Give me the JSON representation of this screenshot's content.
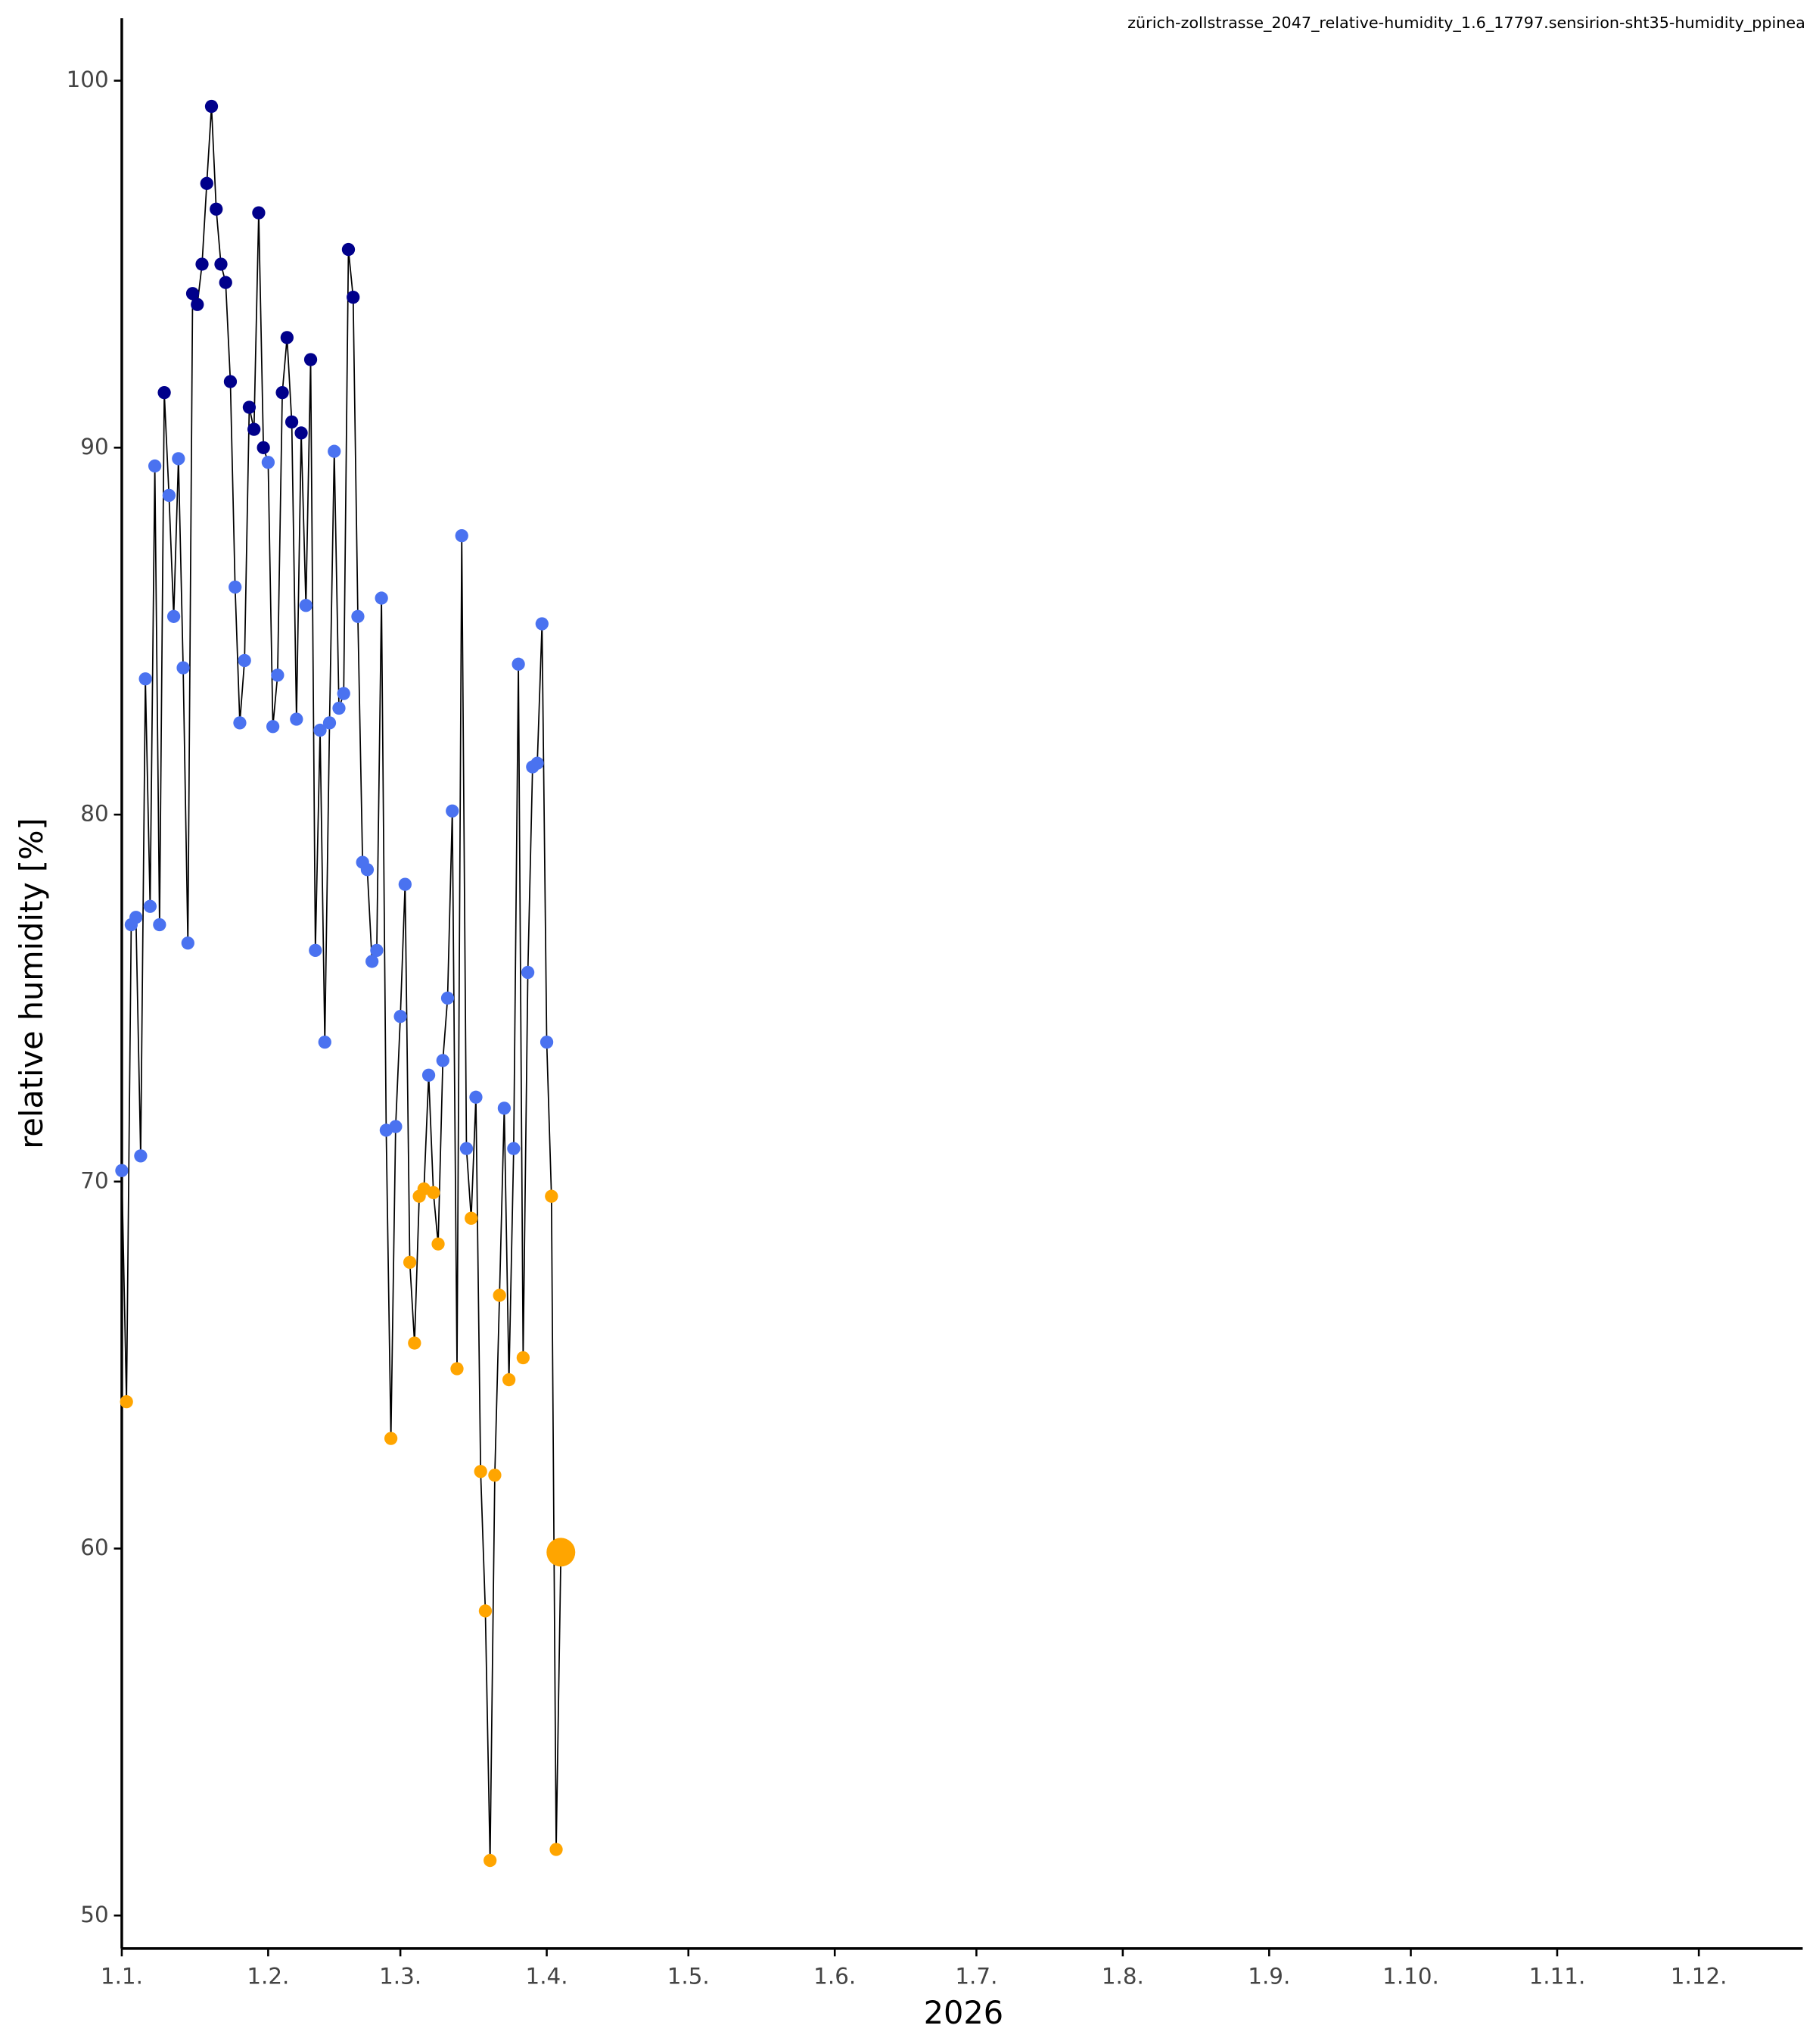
{
  "chart_data": {
    "type": "line",
    "title": "zürich-zollstrasse_2047_relative-humidity_1.6_17797.sensirion-sht35-humidity_ppinea",
    "xlabel": "2026",
    "ylabel": "relative humidity [%]",
    "x": [
      "2026-01-01",
      "2026-01-02",
      "2026-01-03",
      "2026-01-04",
      "2026-01-05",
      "2026-01-06",
      "2026-01-07",
      "2026-01-08",
      "2026-01-09",
      "2026-01-10",
      "2026-01-11",
      "2026-01-12",
      "2026-01-13",
      "2026-01-14",
      "2026-01-15",
      "2026-01-16",
      "2026-01-17",
      "2026-01-18",
      "2026-01-19",
      "2026-01-20",
      "2026-01-21",
      "2026-01-22",
      "2026-01-23",
      "2026-01-24",
      "2026-01-25",
      "2026-01-26",
      "2026-01-27",
      "2026-01-28",
      "2026-01-29",
      "2026-01-30",
      "2026-01-31",
      "2026-02-01",
      "2026-02-02",
      "2026-02-03",
      "2026-02-04",
      "2026-02-05",
      "2026-02-06",
      "2026-02-07",
      "2026-02-08",
      "2026-02-09",
      "2026-02-10",
      "2026-02-11",
      "2026-02-12",
      "2026-02-13",
      "2026-02-14",
      "2026-02-15",
      "2026-02-16",
      "2026-02-17",
      "2026-02-18",
      "2026-02-19",
      "2026-02-20",
      "2026-02-21",
      "2026-02-22",
      "2026-02-23",
      "2026-02-24",
      "2026-02-25",
      "2026-02-26",
      "2026-02-27",
      "2026-02-28",
      "2026-03-01",
      "2026-03-02",
      "2026-03-03",
      "2026-03-04",
      "2026-03-05",
      "2026-03-06",
      "2026-03-07",
      "2026-03-08",
      "2026-03-09",
      "2026-03-10",
      "2026-03-11",
      "2026-03-12",
      "2026-03-13",
      "2026-03-14",
      "2026-03-15",
      "2026-03-16",
      "2026-03-17",
      "2026-03-18",
      "2026-03-19",
      "2026-03-20",
      "2026-03-21",
      "2026-03-22",
      "2026-03-23",
      "2026-03-24",
      "2026-03-25",
      "2026-03-26",
      "2026-03-27",
      "2026-03-28",
      "2026-03-29",
      "2026-03-30",
      "2026-03-31",
      "2026-04-01",
      "2026-04-02",
      "2026-04-03",
      "2026-04-04"
    ],
    "values": [
      70.3,
      64.0,
      77.0,
      77.2,
      70.7,
      83.7,
      77.5,
      89.5,
      77.0,
      91.5,
      88.7,
      85.4,
      89.7,
      84.0,
      76.5,
      94.2,
      93.9,
      95.0,
      97.2,
      99.3,
      96.5,
      95.0,
      94.5,
      91.8,
      86.2,
      82.5,
      84.2,
      91.1,
      90.5,
      96.4,
      90.0,
      89.6,
      82.4,
      83.8,
      91.5,
      93.0,
      90.7,
      82.6,
      90.4,
      85.7,
      92.4,
      76.3,
      82.3,
      73.8,
      82.5,
      89.9,
      82.9,
      83.3,
      95.4,
      94.1,
      85.4,
      78.7,
      78.5,
      76.0,
      76.3,
      85.9,
      71.4,
      63.0,
      71.5,
      74.5,
      78.1,
      67.8,
      65.6,
      69.6,
      69.8,
      72.9,
      69.7,
      68.3,
      73.3,
      75.0,
      80.1,
      64.9,
      87.6,
      70.9,
      69.0,
      72.3,
      62.1,
      58.3,
      51.5,
      62.0,
      66.9,
      72.0,
      64.6,
      70.9,
      84.1,
      65.2,
      75.7,
      81.3,
      81.4,
      85.2,
      73.8,
      69.6,
      51.8,
      59.9
    ],
    "colors": [
      "#4a72f0",
      "#ffa500",
      "#4a72f0",
      "#4a72f0",
      "#4a72f0",
      "#4a72f0",
      "#4a72f0",
      "#4a72f0",
      "#4a72f0",
      "#00008b",
      "#4a72f0",
      "#4a72f0",
      "#4a72f0",
      "#4a72f0",
      "#4a72f0",
      "#00008b",
      "#00008b",
      "#00008b",
      "#00008b",
      "#00008b",
      "#00008b",
      "#00008b",
      "#00008b",
      "#00008b",
      "#4a72f0",
      "#4a72f0",
      "#4a72f0",
      "#00008b",
      "#00008b",
      "#00008b",
      "#00008b",
      "#4a72f0",
      "#4a72f0",
      "#4a72f0",
      "#00008b",
      "#00008b",
      "#00008b",
      "#4a72f0",
      "#00008b",
      "#4a72f0",
      "#00008b",
      "#4a72f0",
      "#4a72f0",
      "#4a72f0",
      "#4a72f0",
      "#4a72f0",
      "#4a72f0",
      "#4a72f0",
      "#00008b",
      "#00008b",
      "#4a72f0",
      "#4a72f0",
      "#4a72f0",
      "#4a72f0",
      "#4a72f0",
      "#4a72f0",
      "#4a72f0",
      "#ffa500",
      "#4a72f0",
      "#4a72f0",
      "#4a72f0",
      "#ffa500",
      "#ffa500",
      "#ffa500",
      "#ffa500",
      "#4a72f0",
      "#ffa500",
      "#ffa500",
      "#4a72f0",
      "#4a72f0",
      "#4a72f0",
      "#ffa500",
      "#4a72f0",
      "#4a72f0",
      "#ffa500",
      "#4a72f0",
      "#ffa500",
      "#ffa500",
      "#ffa500",
      "#ffa500",
      "#ffa500",
      "#4a72f0",
      "#ffa500",
      "#4a72f0",
      "#4a72f0",
      "#ffa500",
      "#4a72f0",
      "#4a72f0",
      "#4a72f0",
      "#4a72f0",
      "#4a72f0",
      "#ffa500",
      "#ffa500",
      "#ffa500"
    ],
    "line_color": "#000000",
    "highlight_last": true,
    "xlim": [
      "2026-01-01",
      "2026-12-23"
    ],
    "xticks": [
      {
        "value": "2026-01-01",
        "label": "1.1."
      },
      {
        "value": "2026-02-01",
        "label": "1.2."
      },
      {
        "value": "2026-03-01",
        "label": "1.3."
      },
      {
        "value": "2026-04-01",
        "label": "1.4."
      },
      {
        "value": "2026-05-01",
        "label": "1.5."
      },
      {
        "value": "2026-06-01",
        "label": "1.6."
      },
      {
        "value": "2026-07-01",
        "label": "1.7."
      },
      {
        "value": "2026-08-01",
        "label": "1.8."
      },
      {
        "value": "2026-09-01",
        "label": "1.9."
      },
      {
        "value": "2026-10-01",
        "label": "1.10."
      },
      {
        "value": "2026-11-01",
        "label": "1.11."
      },
      {
        "value": "2026-12-01",
        "label": "1.12."
      }
    ],
    "ylim": [
      49.1,
      101.7
    ],
    "yticks": [
      50,
      60,
      70,
      80,
      90,
      100
    ],
    "grid": false
  }
}
